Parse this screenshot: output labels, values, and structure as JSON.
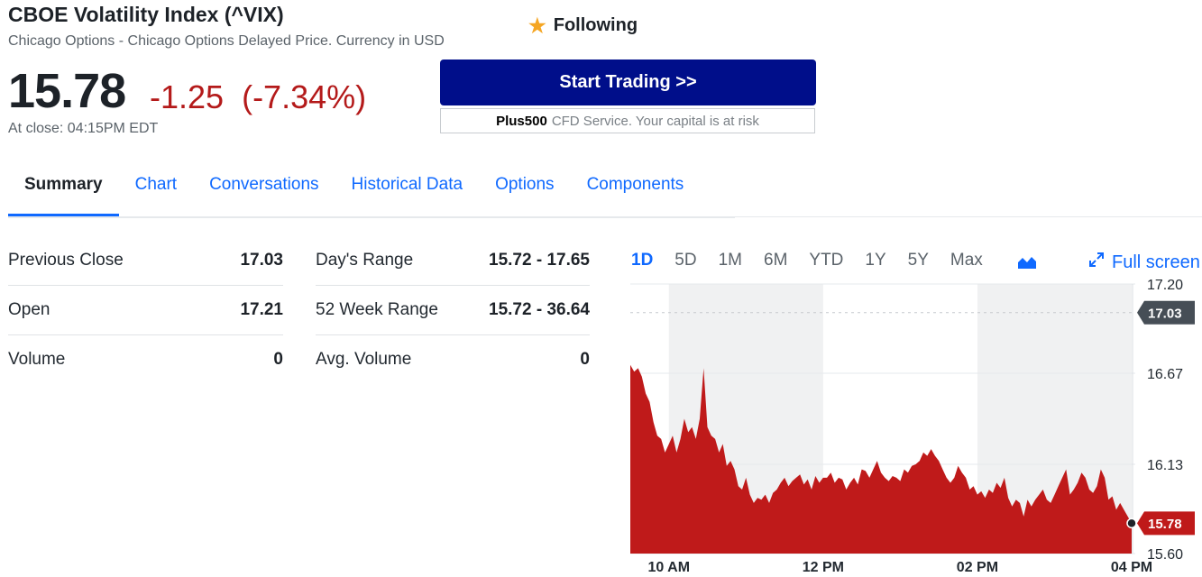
{
  "header": {
    "title": "CBOE Volatility Index (^VIX)",
    "subtitle": "Chicago Options - Chicago Options Delayed Price. Currency in USD",
    "follow_label": "Following",
    "follow_icon": "star-icon",
    "price": "15.78",
    "change": "-1.25",
    "change_pct": "(-7.34%)",
    "close_time": "At close: 04:15PM EDT"
  },
  "ad": {
    "button_label": "Start Trading >>",
    "brand": "Plus500",
    "disclaimer": "CFD Service. Your capital is at risk"
  },
  "tabs": [
    {
      "label": "Summary",
      "active": true
    },
    {
      "label": "Chart"
    },
    {
      "label": "Conversations"
    },
    {
      "label": "Historical Data"
    },
    {
      "label": "Options"
    },
    {
      "label": "Components"
    }
  ],
  "stats": {
    "left": [
      {
        "label": "Previous Close",
        "value": "17.03"
      },
      {
        "label": "Open",
        "value": "17.21"
      },
      {
        "label": "Volume",
        "value": "0"
      }
    ],
    "right": [
      {
        "label": "Day's Range",
        "value": "15.72 - 17.65"
      },
      {
        "label": "52 Week Range",
        "value": "15.72 - 36.64"
      },
      {
        "label": "Avg. Volume",
        "value": "0"
      }
    ]
  },
  "chart_controls": {
    "ranges": [
      "1D",
      "5D",
      "1M",
      "6M",
      "YTD",
      "1Y",
      "5Y",
      "Max"
    ],
    "active_range": "1D",
    "chart_type_icon": "area-chart-icon",
    "fullscreen_label": "Full screen",
    "fullscreen_icon": "expand-icon"
  },
  "chart_data": {
    "type": "area",
    "color": "#bf1a1a",
    "y_ticks": [
      "17.20",
      "16.67",
      "16.13",
      "15.60"
    ],
    "ylim": [
      15.6,
      17.2
    ],
    "x_ticks": [
      "10 AM",
      "12 PM",
      "02 PM",
      "04 PM"
    ],
    "x_tick_hours": [
      10,
      12,
      14,
      16
    ],
    "xlim": [
      9.5,
      16.0
    ],
    "shaded_hours": [
      [
        10,
        12
      ],
      [
        14,
        16
      ]
    ],
    "previous_close": {
      "value": 17.03,
      "label": "17.03"
    },
    "last": {
      "value": 15.78,
      "label": "15.78"
    },
    "x": [
      9.5,
      9.55,
      9.6,
      9.65,
      9.7,
      9.75,
      9.8,
      9.85,
      9.9,
      9.95,
      10.0,
      10.05,
      10.1,
      10.15,
      10.2,
      10.25,
      10.3,
      10.35,
      10.4,
      10.45,
      10.5,
      10.55,
      10.6,
      10.65,
      10.7,
      10.75,
      10.8,
      10.85,
      10.9,
      10.95,
      11.0,
      11.05,
      11.1,
      11.15,
      11.2,
      11.25,
      11.3,
      11.35,
      11.4,
      11.45,
      11.5,
      11.55,
      11.6,
      11.65,
      11.7,
      11.75,
      11.8,
      11.85,
      11.9,
      11.95,
      12.0,
      12.05,
      12.1,
      12.15,
      12.2,
      12.25,
      12.3,
      12.35,
      12.4,
      12.45,
      12.5,
      12.55,
      12.6,
      12.65,
      12.7,
      12.75,
      12.8,
      12.85,
      12.9,
      12.95,
      13.0,
      13.05,
      13.1,
      13.15,
      13.2,
      13.25,
      13.3,
      13.35,
      13.4,
      13.45,
      13.5,
      13.55,
      13.6,
      13.65,
      13.7,
      13.75,
      13.8,
      13.85,
      13.9,
      13.95,
      14.0,
      14.05,
      14.1,
      14.15,
      14.2,
      14.25,
      14.3,
      14.35,
      14.4,
      14.45,
      14.5,
      14.55,
      14.6,
      14.65,
      14.7,
      14.75,
      14.8,
      14.85,
      14.9,
      14.95,
      15.0,
      15.05,
      15.1,
      15.15,
      15.2,
      15.25,
      15.3,
      15.35,
      15.4,
      15.45,
      15.5,
      15.55,
      15.6,
      15.65,
      15.7,
      15.75,
      15.8,
      15.85,
      15.9,
      15.95,
      16.0
    ],
    "y": [
      16.72,
      16.68,
      16.7,
      16.65,
      16.55,
      16.5,
      16.38,
      16.3,
      16.28,
      16.2,
      16.25,
      16.3,
      16.2,
      16.28,
      16.4,
      16.32,
      16.35,
      16.28,
      16.4,
      16.7,
      16.35,
      16.3,
      16.28,
      16.2,
      16.25,
      16.12,
      16.15,
      16.1,
      16.0,
      15.98,
      16.05,
      15.95,
      15.9,
      15.93,
      15.92,
      15.95,
      15.9,
      15.96,
      15.98,
      16.02,
      16.05,
      16.0,
      16.03,
      16.05,
      16.07,
      16.01,
      16.04,
      15.98,
      16.06,
      16.02,
      16.05,
      16.05,
      16.08,
      16.02,
      16.05,
      16.04,
      15.98,
      16.02,
      16.05,
      16.01,
      16.1,
      16.09,
      16.05,
      16.1,
      16.15,
      16.08,
      16.05,
      16.03,
      16.06,
      16.05,
      16.03,
      16.1,
      16.08,
      16.12,
      16.13,
      16.15,
      16.2,
      16.18,
      16.22,
      16.18,
      16.15,
      16.1,
      16.05,
      16.02,
      16.05,
      16.12,
      16.08,
      16.05,
      15.98,
      16.0,
      15.95,
      15.97,
      15.93,
      15.98,
      15.96,
      16.02,
      15.99,
      16.05,
      15.93,
      15.88,
      15.92,
      15.9,
      15.82,
      15.92,
      15.88,
      15.92,
      15.95,
      15.98,
      15.92,
      15.9,
      15.95,
      16.0,
      16.05,
      16.1,
      15.95,
      15.98,
      16.02,
      16.08,
      16.05,
      15.98,
      15.96,
      16.0,
      16.1,
      16.05,
      15.92,
      15.94,
      15.86,
      15.9,
      15.86,
      15.82,
      15.78
    ]
  }
}
